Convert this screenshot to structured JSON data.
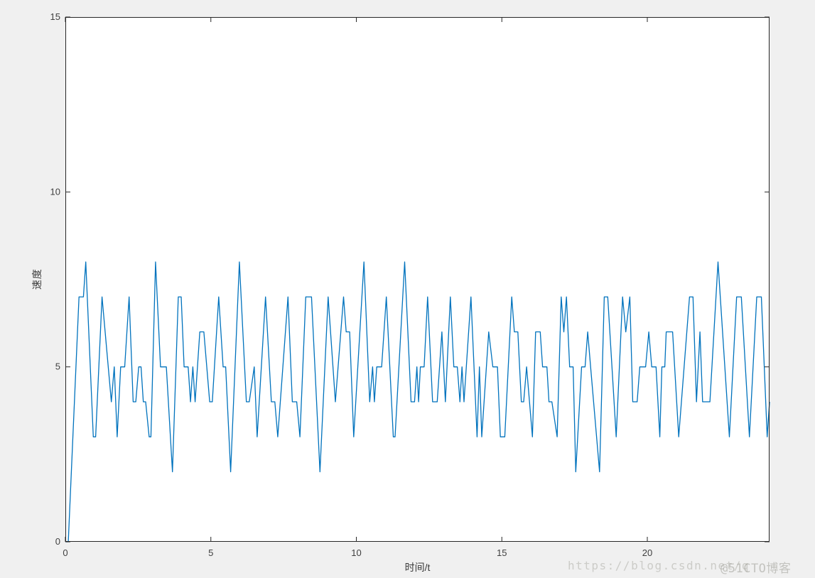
{
  "figure": {
    "background_color": "#f0f0f0",
    "plot_background_color": "#ffffff",
    "axis_color": "#262626",
    "tick_label_color": "#404040",
    "line_color": "#0072BD"
  },
  "watermarks": {
    "csdn_url": "https://blog.csdn.net/q",
    "cto_badge": "@51CTO博客"
  },
  "chart_data": {
    "type": "line",
    "title": "",
    "xlabel": "时间/t",
    "ylabel": "速度",
    "xlim": [
      0,
      24.2
    ],
    "ylim": [
      0,
      15
    ],
    "xticks": [
      0,
      5,
      10,
      15,
      20
    ],
    "yticks": [
      0,
      5,
      10,
      15
    ],
    "xtick_labels": [
      "0",
      "5",
      "10",
      "15",
      "20"
    ],
    "ytick_labels": [
      "0",
      "5",
      "10",
      "15"
    ],
    "grid": false,
    "legend": "none",
    "box": true,
    "series": [
      {
        "name": "速度",
        "color": "#0072BD",
        "points": [
          [
            0,
            0
          ],
          [
            0.1,
            0
          ],
          [
            0.47,
            7
          ],
          [
            0.62,
            7
          ],
          [
            0.7,
            8
          ],
          [
            0.96,
            3
          ],
          [
            1.04,
            3
          ],
          [
            1.26,
            7
          ],
          [
            1.58,
            4
          ],
          [
            1.68,
            5
          ],
          [
            1.78,
            3
          ],
          [
            1.9,
            5
          ],
          [
            2.04,
            5
          ],
          [
            2.19,
            7
          ],
          [
            2.33,
            4
          ],
          [
            2.42,
            4
          ],
          [
            2.52,
            5
          ],
          [
            2.6,
            5
          ],
          [
            2.68,
            4
          ],
          [
            2.76,
            4
          ],
          [
            2.88,
            3
          ],
          [
            2.94,
            3
          ],
          [
            3.1,
            8
          ],
          [
            3.27,
            5
          ],
          [
            3.47,
            5
          ],
          [
            3.68,
            2
          ],
          [
            3.88,
            7
          ],
          [
            3.98,
            7
          ],
          [
            4.08,
            5
          ],
          [
            4.22,
            5
          ],
          [
            4.3,
            4
          ],
          [
            4.38,
            5
          ],
          [
            4.46,
            4
          ],
          [
            4.62,
            6
          ],
          [
            4.76,
            6
          ],
          [
            4.96,
            4
          ],
          [
            5.05,
            4
          ],
          [
            5.27,
            7
          ],
          [
            5.42,
            5
          ],
          [
            5.51,
            5
          ],
          [
            5.68,
            2
          ],
          [
            5.98,
            8
          ],
          [
            6.22,
            4
          ],
          [
            6.32,
            4
          ],
          [
            6.49,
            5
          ],
          [
            6.59,
            3
          ],
          [
            6.88,
            7
          ],
          [
            7.08,
            4
          ],
          [
            7.2,
            4
          ],
          [
            7.3,
            3
          ],
          [
            7.65,
            7
          ],
          [
            7.8,
            4
          ],
          [
            7.95,
            4
          ],
          [
            8.06,
            3
          ],
          [
            8.26,
            7
          ],
          [
            8.46,
            7
          ],
          [
            8.75,
            2
          ],
          [
            9.03,
            7
          ],
          [
            9.28,
            4
          ],
          [
            9.56,
            7
          ],
          [
            9.65,
            6
          ],
          [
            9.77,
            6
          ],
          [
            9.91,
            3
          ],
          [
            10.26,
            8
          ],
          [
            10.46,
            4
          ],
          [
            10.56,
            5
          ],
          [
            10.62,
            4
          ],
          [
            10.7,
            5
          ],
          [
            10.87,
            5
          ],
          [
            11.03,
            7
          ],
          [
            11.27,
            3
          ],
          [
            11.33,
            3
          ],
          [
            11.66,
            8
          ],
          [
            11.88,
            4
          ],
          [
            12.0,
            4
          ],
          [
            12.08,
            5
          ],
          [
            12.14,
            4
          ],
          [
            12.2,
            5
          ],
          [
            12.33,
            5
          ],
          [
            12.45,
            7
          ],
          [
            12.62,
            4
          ],
          [
            12.78,
            4
          ],
          [
            12.94,
            6
          ],
          [
            13.06,
            4
          ],
          [
            13.23,
            7
          ],
          [
            13.35,
            5
          ],
          [
            13.47,
            5
          ],
          [
            13.56,
            4
          ],
          [
            13.63,
            5
          ],
          [
            13.7,
            4
          ],
          [
            13.94,
            7
          ],
          [
            14.15,
            3
          ],
          [
            14.23,
            5
          ],
          [
            14.31,
            3
          ],
          [
            14.55,
            6
          ],
          [
            14.69,
            5
          ],
          [
            14.85,
            5
          ],
          [
            14.95,
            3
          ],
          [
            15.1,
            3
          ],
          [
            15.34,
            7
          ],
          [
            15.43,
            6
          ],
          [
            15.55,
            6
          ],
          [
            15.67,
            4
          ],
          [
            15.75,
            4
          ],
          [
            15.85,
            5
          ],
          [
            16.05,
            3
          ],
          [
            16.16,
            6
          ],
          [
            16.32,
            6
          ],
          [
            16.4,
            5
          ],
          [
            16.55,
            5
          ],
          [
            16.62,
            4
          ],
          [
            16.72,
            4
          ],
          [
            16.9,
            3
          ],
          [
            17.04,
            7
          ],
          [
            17.13,
            6
          ],
          [
            17.22,
            7
          ],
          [
            17.33,
            5
          ],
          [
            17.45,
            5
          ],
          [
            17.54,
            2
          ],
          [
            17.74,
            5
          ],
          [
            17.86,
            5
          ],
          [
            17.95,
            6
          ],
          [
            18.05,
            5
          ],
          [
            18.36,
            2
          ],
          [
            18.52,
            7
          ],
          [
            18.64,
            7
          ],
          [
            18.93,
            3
          ],
          [
            19.15,
            7
          ],
          [
            19.26,
            6
          ],
          [
            19.4,
            7
          ],
          [
            19.5,
            4
          ],
          [
            19.65,
            4
          ],
          [
            19.74,
            5
          ],
          [
            19.94,
            5
          ],
          [
            20.05,
            6
          ],
          [
            20.15,
            5
          ],
          [
            20.3,
            5
          ],
          [
            20.43,
            3
          ],
          [
            20.5,
            5
          ],
          [
            20.6,
            5
          ],
          [
            20.65,
            6
          ],
          [
            20.87,
            6
          ],
          [
            21.08,
            3
          ],
          [
            21.45,
            7
          ],
          [
            21.57,
            7
          ],
          [
            21.69,
            4
          ],
          [
            21.81,
            6
          ],
          [
            21.9,
            4
          ],
          [
            22.15,
            4
          ],
          [
            22.43,
            8
          ],
          [
            22.82,
            3
          ],
          [
            23.07,
            7
          ],
          [
            23.23,
            7
          ],
          [
            23.51,
            3
          ],
          [
            23.76,
            7
          ],
          [
            23.92,
            7
          ],
          [
            24.12,
            3
          ],
          [
            24.2,
            4
          ]
        ]
      }
    ]
  }
}
